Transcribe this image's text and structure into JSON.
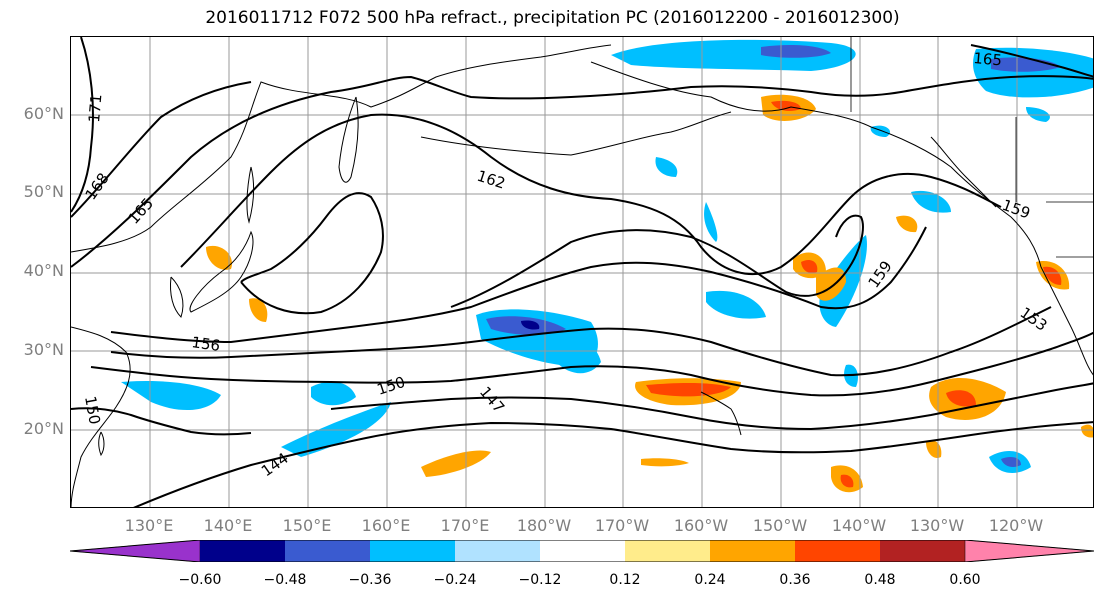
{
  "title": "2016011712 F072 500 hPa refract., precipitation PC (2016012200 - 2016012300)",
  "lat_labels": [
    "60°N",
    "50°N",
    "40°N",
    "30°N",
    "20°N"
  ],
  "lon_labels": [
    "130°E",
    "140°E",
    "150°E",
    "160°E",
    "170°E",
    "180°W",
    "170°W",
    "160°W",
    "150°W",
    "140°W",
    "130°W",
    "120°W"
  ],
  "contour_labels": [
    "171",
    "168",
    "165",
    "162",
    "159",
    "159",
    "156",
    "153",
    "150",
    "150",
    "147",
    "144",
    "165"
  ],
  "colorbar": {
    "ticks": [
      "−0.60",
      "−0.48",
      "−0.36",
      "−0.24",
      "−0.12",
      "0.12",
      "0.24",
      "0.36",
      "0.48",
      "0.60"
    ],
    "colors": [
      "#9932cc",
      "#00008b",
      "#3a5bd0",
      "#00bfff",
      "#b0e2ff",
      "#ffffff",
      "#ffec8b",
      "#ffa500",
      "#ff4500",
      "#b22222",
      "#ff82ab"
    ]
  },
  "colors": {
    "neg_strong": "#00008b",
    "neg_mid": "#3a5bd0",
    "neg": "#00bfff",
    "neg_light": "#b0e2ff",
    "pos_light": "#ffec8b",
    "pos": "#ffa500",
    "pos_mid": "#ff4500"
  }
}
